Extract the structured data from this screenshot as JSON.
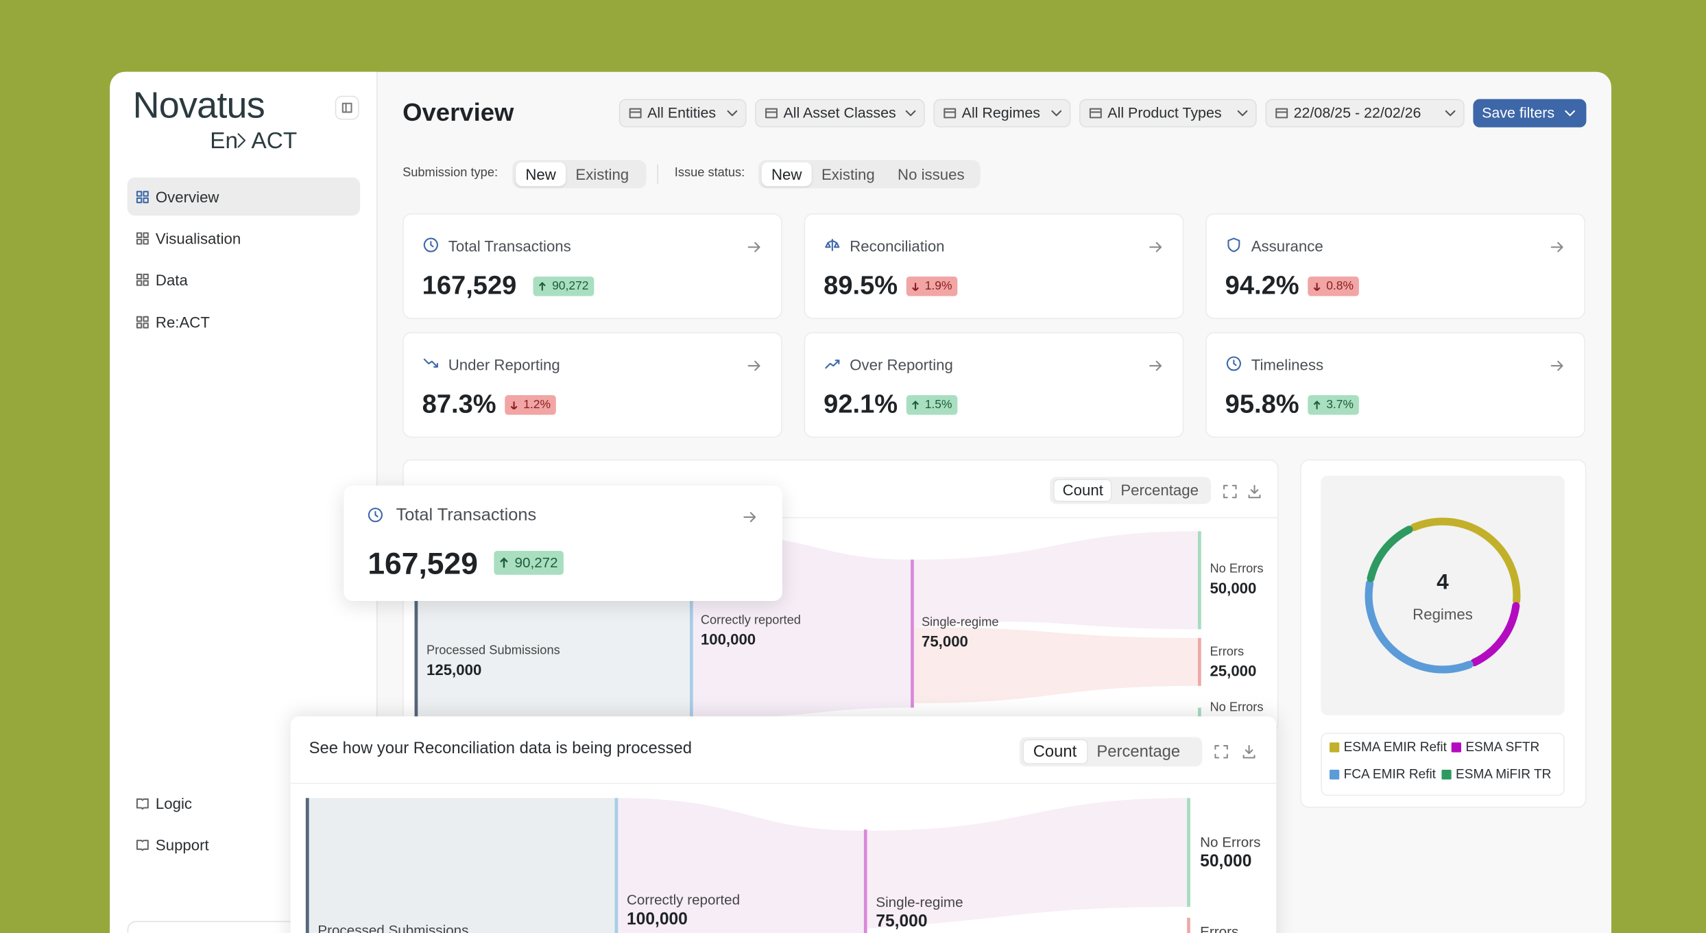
{
  "sidebar": {
    "brand": "Novatus",
    "product_prefix": "En",
    "product_suffix": "ACT",
    "nav": [
      "Overview",
      "Visualisation",
      "Data",
      "Re:ACT"
    ],
    "footer_nav": [
      "Logic",
      "Support"
    ]
  },
  "header": {
    "title": "Overview",
    "filters": [
      "All Entities",
      "All Asset Classes",
      "All Regimes",
      "All Product Types",
      "22/08/25 - 22/02/26"
    ],
    "save": "Save filters"
  },
  "segments": [
    {
      "label": "Submission type:",
      "options": [
        "New",
        "Existing"
      ]
    },
    {
      "label": "Issue status:",
      "options": [
        "New",
        "Existing",
        "No issues"
      ]
    }
  ],
  "kpis": [
    {
      "title": "Total Transactions",
      "value": "167,529",
      "delta": "90,272",
      "trend": "up"
    },
    {
      "title": "Reconciliation",
      "value": "89.5%",
      "delta": "1.9%",
      "trend": "down"
    },
    {
      "title": "Assurance",
      "value": "94.2%",
      "delta": "0.8%",
      "trend": "down"
    },
    {
      "title": "Under Reporting",
      "value": "87.3%",
      "delta": "1.2%",
      "trend": "down"
    },
    {
      "title": "Over Reporting",
      "value": "92.1%",
      "delta": "1.5%",
      "trend": "up"
    },
    {
      "title": "Timeliness",
      "value": "95.8%",
      "delta": "3.7%",
      "trend": "up"
    }
  ],
  "flow_panel": {
    "toggle": [
      "Count",
      "Percentage"
    ],
    "nodes": [
      {
        "label": "Processed Submissions",
        "value": "125,000"
      },
      {
        "label": "Correctly reported",
        "value": "100,000"
      },
      {
        "label": "Single-regime",
        "value": "75,000"
      },
      {
        "label": "No Errors",
        "value": "50,000"
      },
      {
        "label": "Errors",
        "value": "25,000"
      },
      {
        "label": "No Errors"
      }
    ]
  },
  "popup_card": {
    "title": "Total Transactions",
    "value": "167,529",
    "delta": "90,272",
    "trend": "up"
  },
  "bottom_panel": {
    "title": "See how your Reconciliation data is being processed",
    "toggle": [
      "Count",
      "Percentage"
    ],
    "nodes": [
      {
        "label": "Processed Submissions"
      },
      {
        "label": "Correctly reported",
        "value": "100,000"
      },
      {
        "label": "Single-regime",
        "value": "75,000"
      },
      {
        "label": "No Errors",
        "value": "50,000"
      },
      {
        "label": "Errors"
      }
    ]
  },
  "regimes": {
    "count": "4",
    "label": "Regimes",
    "segments": [
      {
        "name": "ESMA EMIR Refit",
        "color": "#c2b02a",
        "share": 33
      },
      {
        "name": "ESMA SFTR",
        "color": "#b30cc0",
        "share": 16
      },
      {
        "name": "FCA EMIR Refit",
        "color": "#5b9bd8",
        "share": 34
      },
      {
        "name": "ESMA MiFIR TR",
        "color": "#2e9a62",
        "share": 14
      }
    ]
  }
}
